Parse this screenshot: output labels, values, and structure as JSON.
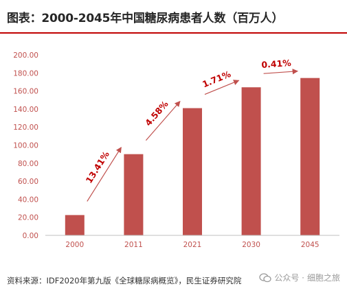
{
  "title": "图表：2000-2045年中国糖尿病患者人数（百万人）",
  "source": "资料来源：IDF2020年第九版《全球糖尿病概览》，民生证券研究院",
  "watermark": {
    "prefix": "公众号 · ",
    "name": "细胞之旅",
    "icon": "wechat-icon"
  },
  "colors": {
    "bar": "#c0504d",
    "arrow": "#c0504d",
    "label": "#c00000",
    "axis_text": "#c0504d",
    "title_rule": "#c00000"
  },
  "chart_data": {
    "type": "bar",
    "categories": [
      "2000",
      "2011",
      "2021",
      "2030",
      "2045"
    ],
    "values": [
      22.5,
      90.0,
      141.0,
      164.1,
      174.4
    ],
    "ylim": [
      0,
      200
    ],
    "yticks": [
      "0.00",
      "20.00",
      "40.00",
      "60.00",
      "80.00",
      "100.00",
      "120.00",
      "140.00",
      "160.00",
      "180.00",
      "200.00"
    ],
    "grid": false,
    "annotations": [
      {
        "from": "2000",
        "to": "2011",
        "label": "13.41%"
      },
      {
        "from": "2011",
        "to": "2021",
        "label": "4.58%"
      },
      {
        "from": "2021",
        "to": "2030",
        "label": "1.71%"
      },
      {
        "from": "2030",
        "to": "2045",
        "label": "0.41%"
      }
    ]
  }
}
